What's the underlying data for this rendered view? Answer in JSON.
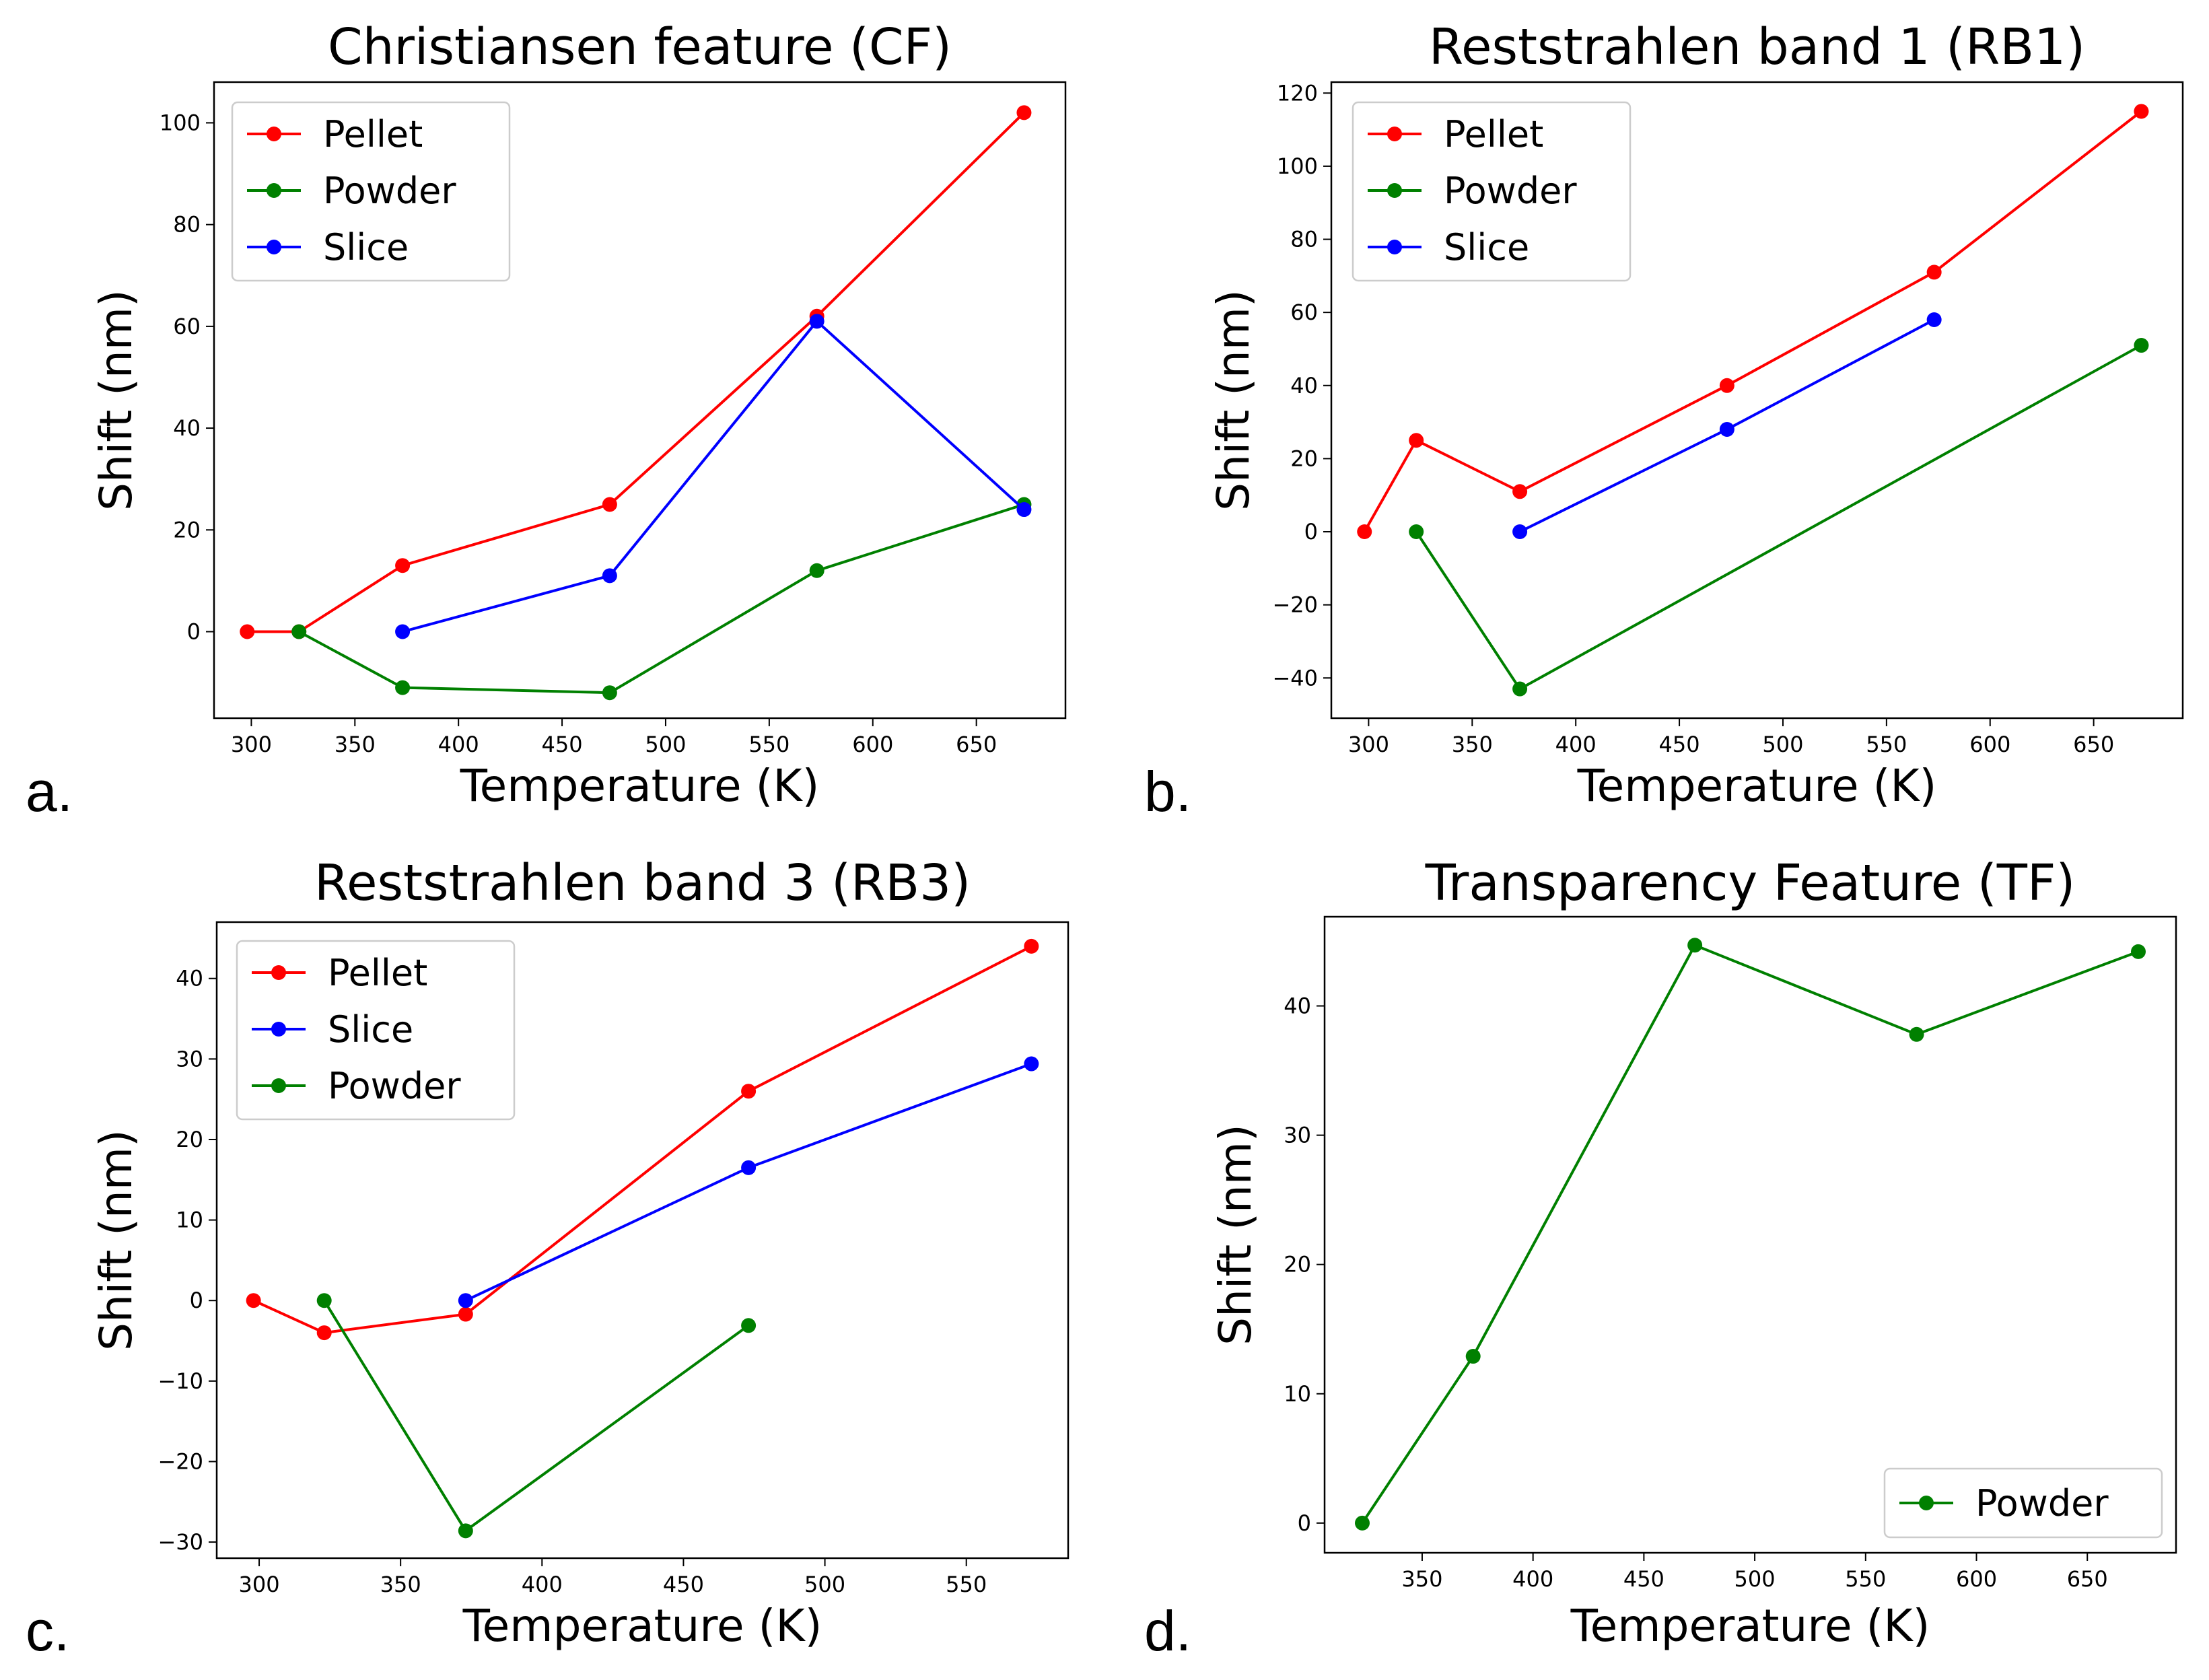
{
  "figure": {
    "panel_letters": [
      "a.",
      "b.",
      "c.",
      "d."
    ]
  },
  "colors": {
    "Pellet": "#ff0000",
    "Powder": "#008000",
    "Slice": "#0000ff"
  },
  "chart_data": [
    {
      "type": "line",
      "title": "Christiansen feature (CF)",
      "xlabel": "Temperature (K)",
      "ylabel": "Shift (nm)",
      "xlim": [
        282,
        693
      ],
      "ylim": [
        -17,
        108
      ],
      "xticks": [
        300,
        350,
        400,
        450,
        500,
        550,
        600,
        650
      ],
      "yticks": [
        0,
        20,
        40,
        60,
        80,
        100
      ],
      "legend_position": "top-left",
      "series": [
        {
          "name": "Pellet",
          "color": "#ff0000",
          "x": [
            298,
            323,
            373,
            473,
            573,
            673
          ],
          "y": [
            0,
            0,
            13,
            25,
            62,
            102
          ]
        },
        {
          "name": "Powder",
          "color": "#008000",
          "x": [
            323,
            373,
            473,
            573,
            673
          ],
          "y": [
            0,
            -11,
            -12,
            12,
            25
          ]
        },
        {
          "name": "Slice",
          "color": "#0000ff",
          "x": [
            373,
            473,
            573,
            673
          ],
          "y": [
            0,
            11,
            61,
            24
          ]
        }
      ]
    },
    {
      "type": "line",
      "title": "Reststrahlen band 1 (RB1)",
      "xlabel": "Temperature (K)",
      "ylabel": "Shift (nm)",
      "xlim": [
        282,
        693
      ],
      "ylim": [
        -51,
        123
      ],
      "xticks": [
        300,
        350,
        400,
        450,
        500,
        550,
        600,
        650
      ],
      "yticks": [
        -40,
        -20,
        0,
        20,
        40,
        60,
        80,
        100,
        120
      ],
      "legend_position": "top-left",
      "series": [
        {
          "name": "Pellet",
          "color": "#ff0000",
          "x": [
            298,
            323,
            373,
            473,
            573,
            673
          ],
          "y": [
            0,
            25,
            11,
            40,
            71,
            115
          ]
        },
        {
          "name": "Powder",
          "color": "#008000",
          "x": [
            323,
            373,
            673
          ],
          "y": [
            0,
            -43,
            51
          ]
        },
        {
          "name": "Slice",
          "color": "#0000ff",
          "x": [
            373,
            473,
            573
          ],
          "y": [
            0,
            28,
            58
          ]
        }
      ]
    },
    {
      "type": "line",
      "title": "Reststrahlen band 3 (RB3)",
      "xlabel": "Temperature (K)",
      "ylabel": "Shift (nm)",
      "xlim": [
        285,
        586
      ],
      "ylim": [
        -32,
        47
      ],
      "xticks": [
        300,
        350,
        400,
        450,
        500,
        550
      ],
      "yticks": [
        -30,
        -20,
        -10,
        0,
        10,
        20,
        30,
        40
      ],
      "legend_position": "top-left",
      "series": [
        {
          "name": "Pellet",
          "color": "#ff0000",
          "x": [
            298,
            323,
            373,
            473,
            573
          ],
          "y": [
            0,
            -4,
            -1.7,
            26,
            44
          ]
        },
        {
          "name": "Slice",
          "color": "#0000ff",
          "x": [
            373,
            473,
            573
          ],
          "y": [
            0,
            16.5,
            29.4
          ]
        },
        {
          "name": "Powder",
          "color": "#008000",
          "x": [
            323,
            373,
            473
          ],
          "y": [
            0,
            -28.6,
            -3.1
          ]
        }
      ]
    },
    {
      "type": "line",
      "title": "Transparency Feature (TF)",
      "xlabel": "Temperature (K)",
      "ylabel": "Shift (nm)",
      "xlim": [
        306,
        690
      ],
      "ylim": [
        -2.3,
        46.9
      ],
      "xticks": [
        350,
        400,
        450,
        500,
        550,
        600,
        650
      ],
      "yticks": [
        0,
        10,
        20,
        30,
        40
      ],
      "legend_position": "bottom-right",
      "series": [
        {
          "name": "Powder",
          "color": "#008000",
          "x": [
            323,
            373,
            473,
            573,
            673
          ],
          "y": [
            0,
            12.9,
            44.7,
            37.8,
            44.2
          ]
        }
      ]
    }
  ]
}
